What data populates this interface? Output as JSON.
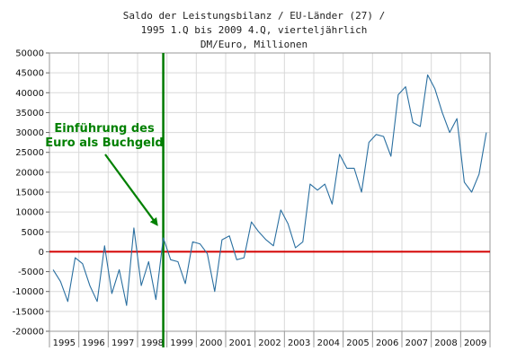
{
  "chart_data": {
    "type": "line",
    "title_lines": [
      "Saldo der Leistungsbilanz / EU-Länder (27) /",
      "1995 1.Q bis 2009 4.Q, vierteljährlich",
      "DM/Euro, Millionen"
    ],
    "xlabel": "",
    "ylabel": "",
    "ylim": [
      -20000,
      50000
    ],
    "y_ticks": [
      50000,
      45000,
      40000,
      35000,
      30000,
      25000,
      20000,
      15000,
      10000,
      5000,
      0,
      -5000,
      -10000,
      -15000,
      -20000
    ],
    "x_years": [
      "1995",
      "1996",
      "1997",
      "1998",
      "1999",
      "2000",
      "2001",
      "2002",
      "2003",
      "2004",
      "2005",
      "2006",
      "2007",
      "2008",
      "2009"
    ],
    "grid": true,
    "series": [
      {
        "color": "#2a6fa0",
        "x": [
          "1995 1.Q",
          "1995 2.Q",
          "1995 3.Q",
          "1995 4.Q",
          "1996 1.Q",
          "1996 2.Q",
          "1996 3.Q",
          "1996 4.Q",
          "1997 1.Q",
          "1997 2.Q",
          "1997 3.Q",
          "1997 4.Q",
          "1998 1.Q",
          "1998 2.Q",
          "1998 3.Q",
          "1998 4.Q",
          "1999 1.Q",
          "1999 2.Q",
          "1999 3.Q",
          "1999 4.Q",
          "2000 1.Q",
          "2000 2.Q",
          "2000 3.Q",
          "2000 4.Q",
          "2001 1.Q",
          "2001 2.Q",
          "2001 3.Q",
          "2001 4.Q",
          "2002 1.Q",
          "2002 2.Q",
          "2002 3.Q",
          "2002 4.Q",
          "2003 1.Q",
          "2003 2.Q",
          "2003 3.Q",
          "2003 4.Q",
          "2004 1.Q",
          "2004 2.Q",
          "2004 3.Q",
          "2004 4.Q",
          "2005 1.Q",
          "2005 2.Q",
          "2005 3.Q",
          "2005 4.Q",
          "2006 1.Q",
          "2006 2.Q",
          "2006 3.Q",
          "2006 4.Q",
          "2007 1.Q",
          "2007 2.Q",
          "2007 3.Q",
          "2007 4.Q",
          "2008 1.Q",
          "2008 2.Q",
          "2008 3.Q",
          "2008 4.Q",
          "2009 1.Q",
          "2009 2.Q",
          "2009 3.Q",
          "2009 4.Q"
        ],
        "values": [
          -4500,
          -7500,
          -12500,
          -1500,
          -3000,
          -8500,
          -12500,
          1500,
          -10500,
          -4500,
          -13500,
          6000,
          -8500,
          -2500,
          -12000,
          3500,
          -2000,
          -2500,
          -8000,
          2500,
          2000,
          -500,
          -10000,
          3000,
          4000,
          -2000,
          -1500,
          7500,
          5000,
          3000,
          1500,
          10500,
          7000,
          1000,
          2500,
          17000,
          15500,
          17000,
          12000,
          24500,
          21000,
          21000,
          15000,
          27500,
          29500,
          29000,
          24000,
          39500,
          41500,
          32500,
          31500,
          44500,
          41000,
          35000,
          30000,
          33500,
          17500,
          15000,
          19500,
          30000
        ]
      }
    ],
    "reference_lines": [
      {
        "axis": "y",
        "value": 0,
        "color": "#d40000"
      },
      {
        "axis": "x",
        "value": "1998 4.Q",
        "color": "#007a00"
      }
    ],
    "annotations": [
      {
        "text_lines": [
          "Einführung des",
          "Euro als Buchgeld"
        ],
        "color": "#008000",
        "points_to": {
          "x": "1998 4.Q",
          "y": 5000
        }
      }
    ]
  }
}
